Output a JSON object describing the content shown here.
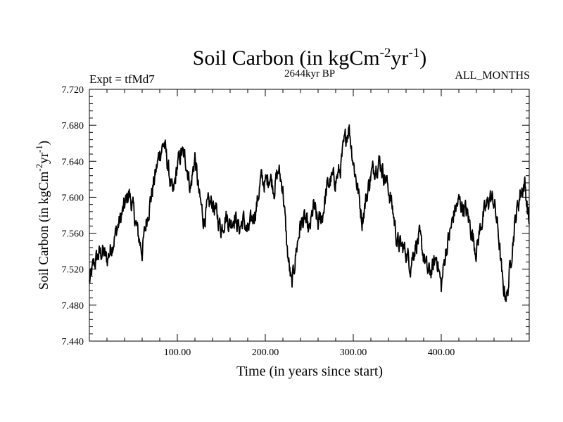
{
  "chart_data": {
    "type": "line",
    "title": {
      "main": "Soil Carbon (in kgCm",
      "exp1": "-2",
      "mid": "yr",
      "exp2": "-1",
      "close": ")"
    },
    "subtitle": "2644kyr BP",
    "left_label": "Expt = tfMd7",
    "right_label": "ALL_MONTHS",
    "xlabel": "Time (in years since start)",
    "ylabel": {
      "main": "Soil Carbon (in kgCm",
      "exp1": "-2",
      "mid": "yr",
      "exp2": "-1",
      "close": ")"
    },
    "xlim": [
      0,
      500
    ],
    "ylim": [
      7.44,
      7.72
    ],
    "x_ticks": [
      100,
      200,
      300,
      400
    ],
    "x_tick_labels": [
      "100.00",
      "200.00",
      "300.00",
      "400.00"
    ],
    "y_ticks": [
      7.44,
      7.48,
      7.52,
      7.56,
      7.6,
      7.64,
      7.68,
      7.72
    ],
    "y_tick_labels": [
      "7.440",
      "7.480",
      "7.520",
      "7.560",
      "7.600",
      "7.640",
      "7.680",
      "7.720"
    ],
    "series": [
      {
        "name": "Soil Carbon",
        "color": "#000000",
        "x": [
          0,
          5,
          10,
          15,
          20,
          25,
          30,
          35,
          40,
          45,
          50,
          55,
          60,
          65,
          70,
          75,
          80,
          85,
          90,
          95,
          100,
          105,
          110,
          115,
          120,
          125,
          130,
          135,
          140,
          145,
          150,
          155,
          160,
          165,
          170,
          175,
          180,
          185,
          190,
          195,
          200,
          205,
          210,
          215,
          220,
          225,
          230,
          235,
          240,
          245,
          250,
          255,
          260,
          265,
          270,
          275,
          280,
          285,
          290,
          295,
          300,
          305,
          310,
          315,
          320,
          325,
          330,
          335,
          340,
          345,
          350,
          355,
          360,
          365,
          370,
          375,
          380,
          385,
          390,
          395,
          400,
          405,
          410,
          415,
          420,
          425,
          430,
          435,
          440,
          445,
          450,
          455,
          460,
          465,
          470,
          475,
          480,
          485,
          490,
          495,
          500
        ],
        "values": [
          7.505,
          7.525,
          7.535,
          7.54,
          7.53,
          7.545,
          7.56,
          7.575,
          7.59,
          7.605,
          7.585,
          7.56,
          7.54,
          7.575,
          7.6,
          7.625,
          7.65,
          7.66,
          7.63,
          7.6,
          7.635,
          7.65,
          7.64,
          7.61,
          7.645,
          7.6,
          7.575,
          7.59,
          7.595,
          7.58,
          7.565,
          7.58,
          7.57,
          7.58,
          7.565,
          7.575,
          7.56,
          7.575,
          7.59,
          7.62,
          7.615,
          7.625,
          7.61,
          7.63,
          7.61,
          7.54,
          7.5,
          7.54,
          7.57,
          7.575,
          7.56,
          7.59,
          7.57,
          7.58,
          7.61,
          7.62,
          7.62,
          7.63,
          7.66,
          7.68,
          7.64,
          7.61,
          7.575,
          7.6,
          7.625,
          7.635,
          7.64,
          7.625,
          7.61,
          7.585,
          7.55,
          7.545,
          7.54,
          7.525,
          7.545,
          7.555,
          7.535,
          7.515,
          7.52,
          7.535,
          7.5,
          7.54,
          7.56,
          7.585,
          7.595,
          7.59,
          7.58,
          7.56,
          7.54,
          7.57,
          7.585,
          7.6,
          7.595,
          7.56,
          7.5,
          7.49,
          7.54,
          7.58,
          7.605,
          7.615,
          7.57
        ]
      }
    ]
  }
}
